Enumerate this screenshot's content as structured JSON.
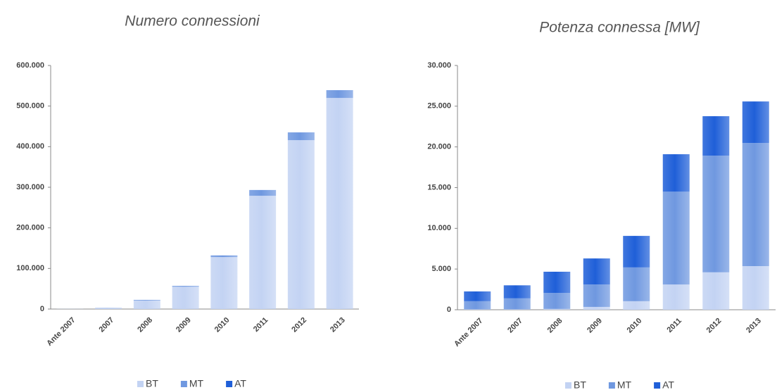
{
  "chart_data": [
    {
      "type": "stacked-bar",
      "title": "Numero connessioni",
      "categories": [
        "Ante 2007",
        "2007",
        "2008",
        "2009",
        "2010",
        "2011",
        "2012",
        "2013"
      ],
      "series": [
        {
          "name": "BT",
          "color": "#c3d3f3",
          "values": [
            300,
            2500,
            21000,
            55000,
            128000,
            279000,
            416000,
            520000
          ]
        },
        {
          "name": "MT",
          "color": "#6f98e0",
          "values": [
            50,
            500,
            1500,
            2000,
            4000,
            14000,
            19000,
            19000
          ]
        },
        {
          "name": "AT",
          "color": "#1f5fd8",
          "values": [
            0,
            0,
            100,
            100,
            100,
            200,
            200,
            200
          ]
        }
      ],
      "ylim": [
        0,
        600000
      ],
      "yticks": [
        0,
        {
          "value": 100000,
          "label": "100.000"
        },
        {
          "value": 200000,
          "label": "200.000"
        },
        {
          "value": 300000,
          "label": "300.000"
        },
        {
          "value": 400000,
          "label": "400.000"
        },
        {
          "value": 500000,
          "label": "500.000"
        },
        {
          "value": 600000,
          "label": "600.000"
        }
      ]
    },
    {
      "type": "stacked-bar",
      "title": "Potenza connessa [MW]",
      "categories": [
        "Ante 2007",
        "2007",
        "2008",
        "2009",
        "2010",
        "2011",
        "2012",
        "2013"
      ],
      "series": [
        {
          "name": "BT",
          "color": "#c3d3f3",
          "values": [
            50,
            50,
            100,
            350,
            1050,
            3100,
            4600,
            5360
          ]
        },
        {
          "name": "MT",
          "color": "#6f98e0",
          "values": [
            1000,
            1350,
            1970,
            2750,
            4150,
            11400,
            14330,
            15120
          ]
        },
        {
          "name": "AT",
          "color": "#1f5fd8",
          "values": [
            1200,
            1600,
            2600,
            3200,
            3870,
            4600,
            4840,
            5100
          ]
        }
      ],
      "ylim": [
        0,
        30000
      ],
      "yticks": [
        0,
        {
          "value": 5000,
          "label": "5.000"
        },
        {
          "value": 10000,
          "label": "10.000"
        },
        {
          "value": 15000,
          "label": "15.000"
        },
        {
          "value": 20000,
          "label": "20.000"
        },
        {
          "value": 25000,
          "label": "25.000"
        },
        {
          "value": 30000,
          "label": "30.000"
        }
      ]
    }
  ]
}
